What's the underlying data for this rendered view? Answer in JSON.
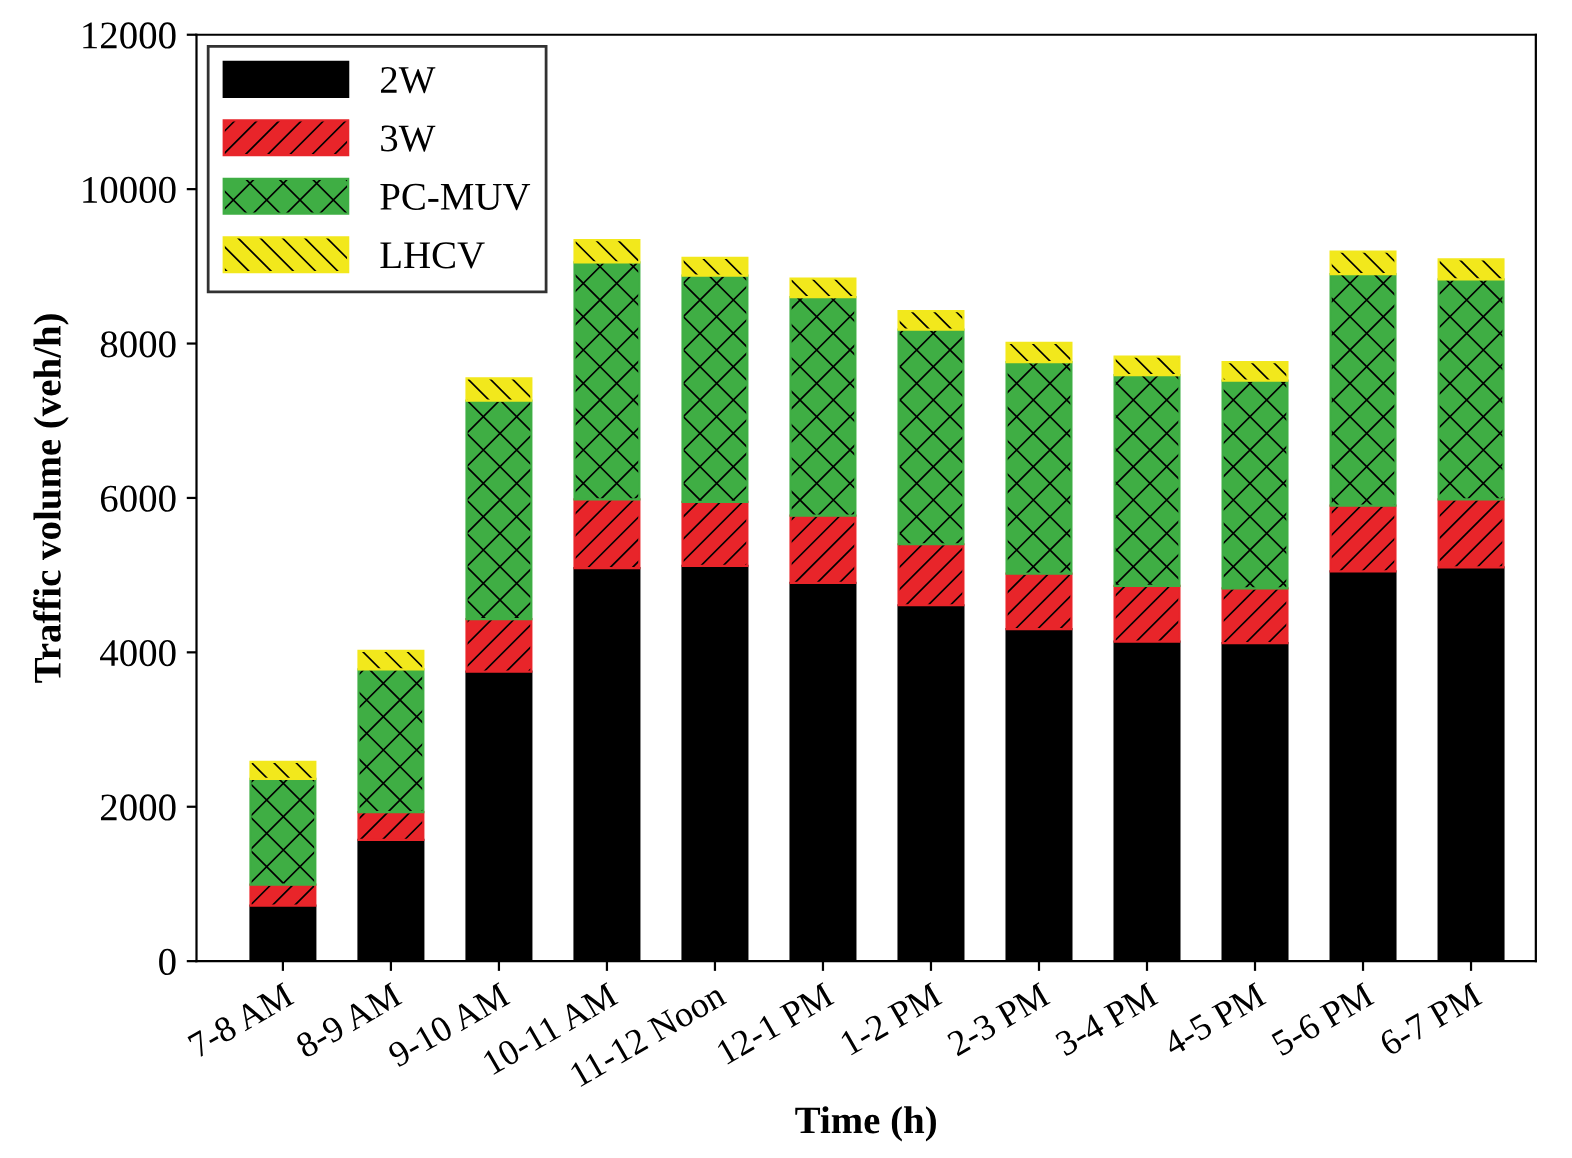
{
  "chart_data": {
    "type": "bar",
    "stacked": true,
    "xlabel": "Time (h)",
    "ylabel": "Traffic volume (veh/h)",
    "categories": [
      "7-8 AM",
      "8-9 AM",
      "9-10 AM",
      "10-11 AM",
      "11-12 Noon",
      "12-1 PM",
      "1-2 PM",
      "2-3 PM",
      "3-4 PM",
      "4-5 PM",
      "5-6 PM",
      "6-7 PM"
    ],
    "series": [
      {
        "name": "2W",
        "color": "#000000",
        "values": [
          720,
          1570,
          3750,
          5090,
          5120,
          4900,
          4610,
          4300,
          4140,
          4120,
          5050,
          5100
        ]
      },
      {
        "name": "3W",
        "color": "#e8252a",
        "values": [
          270,
          360,
          680,
          890,
          830,
          870,
          790,
          720,
          720,
          710,
          850,
          880
        ]
      },
      {
        "name": "PC-MUV",
        "color": "#3fae44",
        "values": [
          1370,
          1850,
          2830,
          3070,
          2930,
          2830,
          2780,
          2740,
          2730,
          2690,
          3000,
          2850
        ]
      },
      {
        "name": "LHCV",
        "color": "#f2e81c",
        "values": [
          220,
          240,
          290,
          290,
          230,
          240,
          240,
          250,
          240,
          240,
          290,
          260
        ]
      }
    ],
    "ylim": [
      0,
      12000
    ],
    "yticks": [
      0,
      2000,
      4000,
      6000,
      8000,
      10000,
      12000
    ],
    "legend": "top left"
  }
}
